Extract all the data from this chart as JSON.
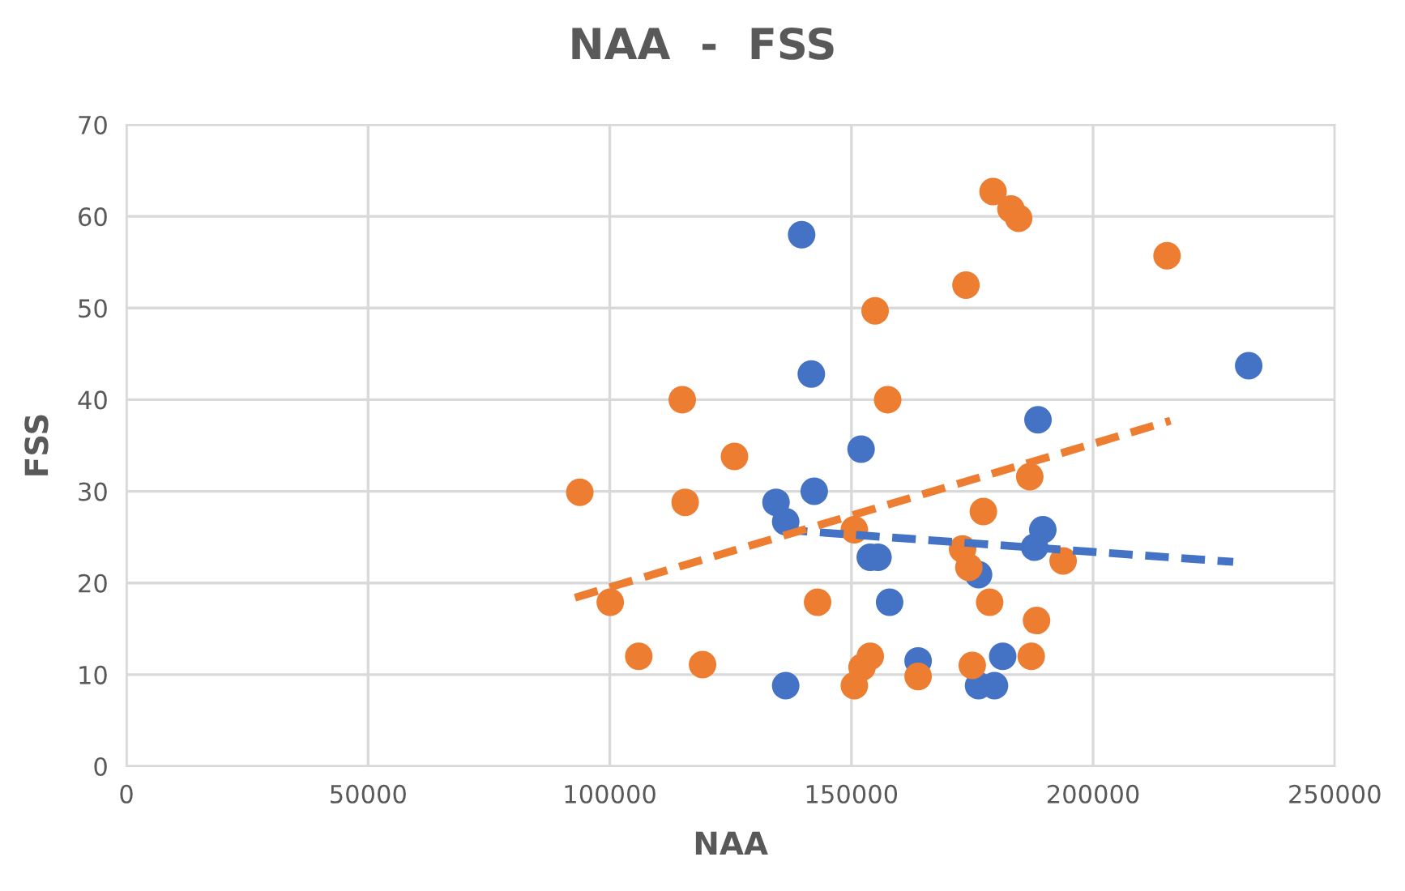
{
  "chart_data": {
    "type": "scatter",
    "title": "NAA  -  FSS",
    "xlabel": "NAA",
    "ylabel": "FSS",
    "xlim": [
      0,
      250000
    ],
    "xticks": [
      0,
      50000,
      100000,
      150000,
      200000,
      250000
    ],
    "ylim": [
      0,
      70
    ],
    "yticks": [
      0,
      10,
      20,
      30,
      40,
      50,
      60,
      70
    ],
    "grid": true,
    "legend": false,
    "marker": "circle",
    "series": [
      {
        "color": "#4472c4",
        "x": [
          139700,
          141700,
          152000,
          134400,
          136400,
          142300,
          153900,
          155500,
          157900,
          136400,
          163800,
          188600,
          232200,
          189600,
          187900,
          176300,
          181300,
          176300,
          179600
        ],
        "values": [
          58,
          42.8,
          34.6,
          28.8,
          26.7,
          30,
          22.8,
          22.8,
          17.9,
          8.8,
          11.5,
          37.8,
          43.7,
          25.8,
          23.9,
          20.9,
          12,
          8.8,
          8.8
        ]
      },
      {
        "color": "#ed7d31",
        "x": [
          93800,
          100100,
          106000,
          119200,
          115000,
          115600,
          125800,
          154900,
          157500,
          143000,
          150600,
          150600,
          152200,
          153900,
          163800,
          179300,
          183000,
          184600,
          173700,
          215300,
          186900,
          177300,
          173000,
          174300,
          193800,
          178600,
          188300,
          175000,
          187200
        ],
        "values": [
          29.9,
          17.9,
          12,
          11.1,
          40,
          28.8,
          33.8,
          49.7,
          40,
          17.9,
          25.8,
          8.8,
          10.8,
          12,
          9.8,
          62.7,
          60.8,
          59.8,
          52.5,
          55.7,
          31.6,
          27.8,
          23.7,
          21.7,
          22.4,
          17.9,
          15.9,
          11,
          12
        ]
      },
      {
        "type": "line",
        "color": "#4472c4",
        "line_style": "dashed",
        "marker": "none",
        "x": [
          136000,
          229000
        ],
        "values": [
          25.8,
          22.3
        ]
      },
      {
        "type": "line",
        "color": "#ed7d31",
        "line_style": "dashed",
        "marker": "none",
        "x": [
          92800,
          216000
        ],
        "values": [
          18.4,
          37.7
        ]
      }
    ]
  }
}
